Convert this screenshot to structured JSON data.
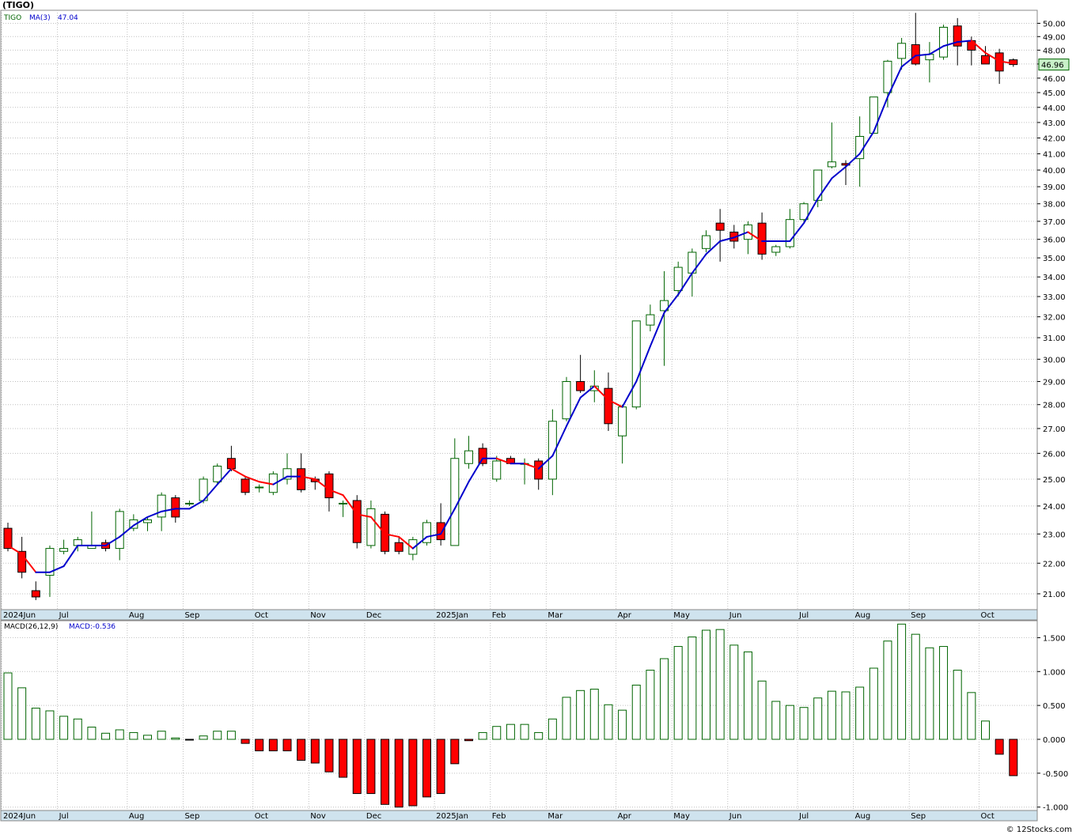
{
  "header": {
    "symbol_title": "(TIGO)",
    "legend_symbol": "TIGO",
    "legend_ma": "MA(3)",
    "legend_ma_value": "47.04",
    "last_price": "46.96"
  },
  "macd_panel": {
    "label": "MACD(26,12,9)",
    "value_label": "MACD:-0.536"
  },
  "footer": {
    "watermark": "© 12Stocks.com"
  },
  "colors": {
    "up": "#006400",
    "down": "#ff0000",
    "ma_up": "#0000cc",
    "ma_down": "#ff0000",
    "axis_band": "#cfe3ee",
    "grid": "#c0c0c0"
  },
  "chart_data": [
    {
      "type": "candlestick",
      "scale": "log",
      "ylim": [
        20.5,
        51.0
      ],
      "yticks": [
        21,
        22,
        23,
        24,
        25,
        26,
        27,
        28,
        29,
        30,
        31,
        32,
        33,
        34,
        35,
        36,
        37,
        38,
        39,
        40,
        41,
        42,
        43,
        44,
        45,
        46,
        47,
        48,
        49,
        50
      ],
      "ytick_labels": [
        "21.00",
        "22.00",
        "23.00",
        "24.00",
        "25.00",
        "26.00",
        "27.00",
        "28.00",
        "29.00",
        "30.00",
        "31.00",
        "32.00",
        "33.00",
        "34.00",
        "35.00",
        "36.00",
        "37.00",
        "38.00",
        "39.00",
        "40.00",
        "41.00",
        "42.00",
        "43.00",
        "44.00",
        "45.00",
        "46.00",
        "47.00",
        "48.00",
        "49.00",
        "50.00"
      ],
      "x_labels": [
        {
          "label": "2024Jun",
          "index": 0
        },
        {
          "label": "Jul",
          "index": 4
        },
        {
          "label": "Aug",
          "index": 9
        },
        {
          "label": "Sep",
          "index": 13
        },
        {
          "label": "Oct",
          "index": 18
        },
        {
          "label": "Nov",
          "index": 22
        },
        {
          "label": "Dec",
          "index": 26
        },
        {
          "label": "2025Jan",
          "index": 31
        },
        {
          "label": "Feb",
          "index": 35
        },
        {
          "label": "Mar",
          "index": 39
        },
        {
          "label": "Apr",
          "index": 44
        },
        {
          "label": "May",
          "index": 48
        },
        {
          "label": "Jun",
          "index": 52
        },
        {
          "label": "Jul",
          "index": 57
        },
        {
          "label": "Aug",
          "index": 61
        },
        {
          "label": "Sep",
          "index": 65
        },
        {
          "label": "Oct",
          "index": 70
        }
      ],
      "ohlc": [
        [
          23.2,
          23.4,
          22.4,
          22.5
        ],
        [
          22.4,
          22.9,
          21.5,
          21.7
        ],
        [
          21.1,
          21.4,
          20.8,
          20.9
        ],
        [
          21.6,
          22.6,
          20.9,
          22.5
        ],
        [
          22.4,
          22.8,
          22.3,
          22.5
        ],
        [
          22.6,
          22.9,
          22.4,
          22.8
        ],
        [
          22.5,
          23.8,
          22.5,
          22.6
        ],
        [
          22.7,
          22.8,
          22.4,
          22.5
        ],
        [
          22.5,
          23.9,
          22.1,
          23.8
        ],
        [
          23.2,
          23.7,
          23.1,
          23.5
        ],
        [
          23.4,
          23.6,
          23.1,
          23.5
        ],
        [
          23.6,
          24.5,
          23.1,
          24.4
        ],
        [
          24.3,
          24.4,
          23.4,
          23.6
        ],
        [
          24.1,
          24.2,
          24.0,
          24.1
        ],
        [
          24.2,
          25.1,
          24.1,
          25.0
        ],
        [
          24.9,
          25.6,
          24.8,
          25.5
        ],
        [
          25.8,
          26.3,
          25.3,
          25.4
        ],
        [
          25.0,
          25.1,
          24.4,
          24.5
        ],
        [
          24.7,
          24.8,
          24.5,
          24.7
        ],
        [
          24.5,
          25.3,
          24.4,
          25.2
        ],
        [
          25.0,
          26.0,
          24.8,
          25.4
        ],
        [
          25.4,
          26.0,
          24.5,
          24.6
        ],
        [
          25.0,
          25.1,
          24.6,
          24.9
        ],
        [
          25.2,
          25.3,
          23.8,
          24.3
        ],
        [
          24.1,
          24.2,
          23.6,
          24.1
        ],
        [
          24.2,
          24.4,
          22.5,
          22.7
        ],
        [
          22.6,
          24.2,
          22.5,
          23.9
        ],
        [
          23.7,
          23.8,
          22.3,
          22.4
        ],
        [
          22.7,
          22.9,
          22.3,
          22.4
        ],
        [
          22.3,
          22.9,
          22.1,
          22.8
        ],
        [
          22.7,
          23.5,
          22.6,
          23.4
        ],
        [
          23.4,
          24.1,
          22.6,
          22.8
        ],
        [
          22.6,
          26.6,
          22.6,
          25.8
        ],
        [
          25.6,
          26.7,
          25.4,
          26.1
        ],
        [
          26.2,
          26.4,
          25.5,
          25.6
        ],
        [
          25.0,
          25.9,
          24.9,
          25.7
        ],
        [
          25.8,
          25.9,
          25.6,
          25.6
        ],
        [
          25.6,
          25.8,
          24.8,
          25.6
        ],
        [
          25.7,
          25.8,
          24.6,
          25.0
        ],
        [
          25.0,
          27.8,
          24.4,
          27.3
        ],
        [
          27.4,
          29.2,
          27.3,
          29.0
        ],
        [
          29.0,
          30.2,
          28.5,
          28.6
        ],
        [
          28.6,
          29.5,
          28.1,
          28.8
        ],
        [
          28.7,
          29.4,
          26.9,
          27.2
        ],
        [
          26.7,
          28.0,
          25.6,
          27.9
        ],
        [
          27.9,
          31.8,
          27.8,
          31.8
        ],
        [
          31.6,
          32.6,
          31.3,
          32.1
        ],
        [
          32.3,
          34.3,
          29.7,
          32.8
        ],
        [
          33.3,
          34.8,
          33.0,
          34.5
        ],
        [
          34.2,
          35.5,
          33.0,
          35.3
        ],
        [
          35.5,
          36.5,
          35.3,
          36.2
        ],
        [
          36.9,
          37.7,
          34.8,
          36.5
        ],
        [
          36.4,
          36.8,
          35.5,
          35.9
        ],
        [
          36.0,
          37.0,
          35.2,
          36.8
        ],
        [
          36.9,
          37.5,
          34.9,
          35.2
        ],
        [
          35.3,
          35.7,
          35.1,
          35.6
        ],
        [
          35.6,
          37.7,
          35.5,
          37.1
        ],
        [
          37.1,
          38.1,
          37.0,
          38.0
        ],
        [
          38.2,
          40.0,
          37.8,
          40.0
        ],
        [
          40.2,
          43.0,
          40.1,
          40.5
        ],
        [
          40.4,
          40.6,
          39.1,
          40.3
        ],
        [
          40.7,
          43.4,
          39.0,
          42.1
        ],
        [
          42.3,
          44.6,
          42.3,
          44.7
        ],
        [
          45.0,
          47.3,
          44.0,
          47.2
        ],
        [
          47.4,
          48.9,
          46.6,
          48.5
        ],
        [
          48.4,
          50.8,
          46.9,
          47.0
        ],
        [
          47.3,
          48.6,
          45.7,
          47.7
        ],
        [
          47.5,
          49.9,
          47.3,
          49.7
        ],
        [
          49.8,
          50.4,
          46.9,
          48.3
        ],
        [
          48.7,
          49.0,
          46.9,
          48.0
        ],
        [
          47.6,
          48.3,
          47.1,
          47.0
        ],
        [
          47.8,
          48.1,
          45.6,
          46.5
        ],
        [
          47.3,
          47.4,
          46.8,
          46.96
        ]
      ],
      "ma3": [
        22.6,
        22.3,
        21.7,
        21.7,
        21.9,
        22.6,
        22.6,
        22.6,
        22.9,
        23.3,
        23.6,
        23.8,
        23.9,
        23.9,
        24.2,
        24.8,
        25.4,
        25.1,
        24.9,
        24.8,
        25.1,
        25.1,
        25.0,
        24.6,
        24.4,
        23.7,
        23.6,
        23.0,
        22.9,
        22.5,
        22.9,
        23.0,
        23.9,
        24.9,
        25.8,
        25.8,
        25.6,
        25.6,
        25.4,
        25.9,
        27.1,
        28.3,
        28.8,
        28.2,
        27.9,
        29.0,
        30.6,
        32.2,
        33.1,
        34.2,
        35.2,
        35.9,
        36.1,
        36.4,
        35.9,
        35.9,
        35.9,
        36.9,
        38.3,
        39.5,
        40.2,
        41.0,
        42.4,
        44.7,
        46.8,
        47.6,
        47.7,
        48.3,
        48.6,
        48.7,
        47.8,
        47.2,
        47.04
      ],
      "last_value": 46.96
    },
    {
      "type": "bar",
      "name": "MACD(26,12,9)",
      "ylim": [
        -1.05,
        1.75
      ],
      "yticks": [
        -1.0,
        -0.5,
        0.0,
        0.5,
        1.0,
        1.5
      ],
      "ytick_labels": [
        "-1.000",
        "-0.500",
        "0.000",
        "0.500",
        "1.000",
        "1.500"
      ],
      "values": [
        0.98,
        0.76,
        0.46,
        0.42,
        0.34,
        0.3,
        0.18,
        0.09,
        0.14,
        0.1,
        0.06,
        0.12,
        0.02,
        -0.01,
        0.05,
        0.12,
        0.12,
        -0.06,
        -0.17,
        -0.17,
        -0.17,
        -0.31,
        -0.35,
        -0.48,
        -0.56,
        -0.8,
        -0.8,
        -0.96,
        -1.0,
        -0.98,
        -0.85,
        -0.8,
        -0.36,
        -0.02,
        0.1,
        0.19,
        0.22,
        0.22,
        0.1,
        0.3,
        0.62,
        0.72,
        0.74,
        0.51,
        0.43,
        0.8,
        1.02,
        1.19,
        1.37,
        1.51,
        1.61,
        1.62,
        1.39,
        1.29,
        0.86,
        0.56,
        0.5,
        0.47,
        0.61,
        0.71,
        0.7,
        0.77,
        1.05,
        1.45,
        1.7,
        1.55,
        1.35,
        1.37,
        1.02,
        0.69,
        0.27,
        -0.22,
        -0.536
      ],
      "x_labels_same_as_price": true
    }
  ]
}
